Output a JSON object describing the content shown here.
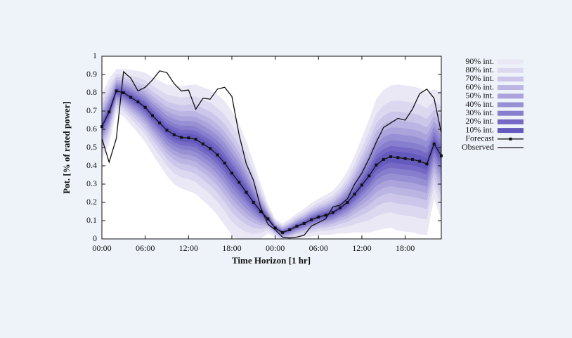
{
  "chart_data": {
    "type": "fan",
    "xlabel": "Time Horizon [1 hr]",
    "ylabel": "Pot. [% of rated power]",
    "categories": [
      "00:00",
      null,
      null,
      null,
      null,
      null,
      "06:00",
      null,
      null,
      null,
      null,
      null,
      "12:00",
      null,
      null,
      null,
      null,
      null,
      "18:00",
      null,
      null,
      null,
      null,
      null,
      "00:00",
      null,
      null,
      null,
      null,
      null,
      "06:00",
      null,
      null,
      null,
      null,
      null,
      "12:00",
      null,
      null,
      null,
      null,
      null,
      "18:00",
      null,
      null,
      null,
      null,
      null
    ],
    "ylim": [
      0,
      1
    ],
    "yticks": [
      0,
      0.1,
      0.2,
      0.3,
      0.4,
      0.5,
      0.6,
      0.7,
      0.8,
      0.9,
      1
    ],
    "series": [
      {
        "name": "Forecast",
        "color": "#111111",
        "marker": "square",
        "values": [
          0.615,
          0.695,
          0.81,
          0.8,
          0.775,
          0.75,
          0.72,
          0.675,
          0.635,
          0.595,
          0.57,
          0.555,
          0.553,
          0.545,
          0.52,
          0.495,
          0.46,
          0.415,
          0.36,
          0.31,
          0.255,
          0.2,
          0.15,
          0.11,
          0.06,
          0.035,
          0.05,
          0.07,
          0.085,
          0.105,
          0.12,
          0.13,
          0.145,
          0.17,
          0.2,
          0.245,
          0.295,
          0.345,
          0.405,
          0.435,
          0.45,
          0.445,
          0.44,
          0.435,
          0.425,
          0.41,
          0.52,
          0.455
        ]
      },
      {
        "name": "Observed",
        "color": "#111111",
        "values": [
          0.55,
          0.42,
          0.55,
          0.915,
          0.88,
          0.81,
          0.83,
          0.87,
          0.92,
          0.91,
          0.85,
          0.81,
          0.815,
          0.71,
          0.77,
          0.765,
          0.82,
          0.83,
          0.78,
          0.57,
          0.41,
          0.32,
          0.17,
          0.08,
          0.05,
          0.01,
          0.005,
          0.01,
          0.02,
          0.07,
          0.09,
          0.11,
          0.175,
          0.185,
          0.22,
          0.3,
          0.36,
          0.44,
          0.53,
          0.61,
          0.635,
          0.66,
          0.65,
          0.71,
          0.795,
          0.82,
          0.77,
          0.58
        ]
      }
    ],
    "intervals": [
      {
        "name": "90% int.",
        "color": "#ebe8f5",
        "values": [
          0.18,
          0.18,
          0.12,
          0.13,
          0.15,
          0.17,
          0.19,
          0.21,
          0.23,
          0.25,
          0.27,
          0.28,
          0.29,
          0.3,
          0.31,
          0.32,
          0.33,
          0.34,
          0.34,
          0.32,
          0.28,
          0.22,
          0.15,
          0.08,
          0.05,
          0.05,
          0.06,
          0.07,
          0.08,
          0.09,
          0.1,
          0.11,
          0.12,
          0.14,
          0.17,
          0.21,
          0.26,
          0.31,
          0.36,
          0.38,
          0.39,
          0.4,
          0.4,
          0.4,
          0.4,
          0.39,
          0.3,
          0.35
        ]
      },
      {
        "name": "80% int.",
        "color": "#dcd8f0",
        "values": [
          0.14,
          0.14,
          0.094,
          0.101,
          0.117,
          0.133,
          0.148,
          0.164,
          0.179,
          0.195,
          0.211,
          0.218,
          0.226,
          0.234,
          0.242,
          0.25,
          0.257,
          0.265,
          0.265,
          0.25,
          0.218,
          0.172,
          0.117,
          0.062,
          0.039,
          0.039,
          0.047,
          0.055,
          0.062,
          0.07,
          0.078,
          0.086,
          0.094,
          0.109,
          0.133,
          0.164,
          0.203,
          0.242,
          0.281,
          0.296,
          0.304,
          0.312,
          0.312,
          0.312,
          0.312,
          0.304,
          0.234,
          0.273
        ]
      },
      {
        "name": "70% int.",
        "color": "#ccc7ea",
        "values": [
          0.113,
          0.113,
          0.076,
          0.082,
          0.095,
          0.107,
          0.12,
          0.132,
          0.145,
          0.158,
          0.17,
          0.176,
          0.183,
          0.189,
          0.195,
          0.202,
          0.208,
          0.214,
          0.214,
          0.202,
          0.176,
          0.139,
          0.095,
          0.05,
          0.032,
          0.032,
          0.038,
          0.044,
          0.05,
          0.057,
          0.063,
          0.069,
          0.076,
          0.088,
          0.107,
          0.132,
          0.164,
          0.195,
          0.227,
          0.239,
          0.246,
          0.252,
          0.252,
          0.252,
          0.252,
          0.246,
          0.189,
          0.221
        ]
      },
      {
        "name": "60% int.",
        "color": "#bbb5e3",
        "values": [
          0.092,
          0.092,
          0.061,
          0.066,
          0.077,
          0.087,
          0.097,
          0.107,
          0.117,
          0.128,
          0.138,
          0.143,
          0.148,
          0.153,
          0.158,
          0.163,
          0.168,
          0.173,
          0.173,
          0.163,
          0.143,
          0.112,
          0.077,
          0.041,
          0.026,
          0.026,
          0.031,
          0.036,
          0.041,
          0.046,
          0.051,
          0.056,
          0.061,
          0.071,
          0.087,
          0.107,
          0.133,
          0.158,
          0.184,
          0.194,
          0.199,
          0.204,
          0.204,
          0.204,
          0.204,
          0.199,
          0.153,
          0.179
        ]
      },
      {
        "name": "50% int.",
        "color": "#aaa3dc",
        "values": [
          0.074,
          0.074,
          0.049,
          0.053,
          0.062,
          0.07,
          0.078,
          0.086,
          0.094,
          0.103,
          0.111,
          0.115,
          0.119,
          0.123,
          0.127,
          0.131,
          0.135,
          0.139,
          0.139,
          0.131,
          0.115,
          0.09,
          0.062,
          0.033,
          0.021,
          0.021,
          0.025,
          0.029,
          0.033,
          0.037,
          0.041,
          0.045,
          0.049,
          0.057,
          0.07,
          0.086,
          0.107,
          0.127,
          0.148,
          0.156,
          0.16,
          0.164,
          0.164,
          0.164,
          0.164,
          0.16,
          0.123,
          0.144
        ]
      },
      {
        "name": "40% int.",
        "color": "#9890d4",
        "values": [
          0.058,
          0.058,
          0.038,
          0.042,
          0.048,
          0.054,
          0.061,
          0.067,
          0.074,
          0.08,
          0.086,
          0.09,
          0.093,
          0.096,
          0.099,
          0.102,
          0.106,
          0.109,
          0.109,
          0.102,
          0.09,
          0.07,
          0.048,
          0.026,
          0.016,
          0.016,
          0.019,
          0.022,
          0.026,
          0.029,
          0.032,
          0.035,
          0.038,
          0.045,
          0.054,
          0.067,
          0.083,
          0.099,
          0.115,
          0.122,
          0.125,
          0.128,
          0.128,
          0.128,
          0.128,
          0.125,
          0.096,
          0.112
        ]
      },
      {
        "name": "30% int.",
        "color": "#877ecd",
        "values": [
          0.041,
          0.041,
          0.028,
          0.03,
          0.035,
          0.039,
          0.044,
          0.048,
          0.053,
          0.058,
          0.062,
          0.064,
          0.067,
          0.069,
          0.071,
          0.074,
          0.076,
          0.078,
          0.078,
          0.074,
          0.064,
          0.051,
          0.035,
          0.018,
          0.012,
          0.012,
          0.014,
          0.016,
          0.018,
          0.021,
          0.023,
          0.025,
          0.028,
          0.032,
          0.039,
          0.048,
          0.06,
          0.071,
          0.083,
          0.087,
          0.09,
          0.092,
          0.092,
          0.092,
          0.092,
          0.09,
          0.069,
          0.081
        ]
      },
      {
        "name": "20% int.",
        "color": "#7569c5",
        "values": [
          0.027,
          0.027,
          0.018,
          0.02,
          0.023,
          0.026,
          0.029,
          0.032,
          0.035,
          0.038,
          0.041,
          0.042,
          0.044,
          0.045,
          0.047,
          0.048,
          0.05,
          0.051,
          0.051,
          0.048,
          0.042,
          0.033,
          0.023,
          0.012,
          0.008,
          0.008,
          0.009,
          0.011,
          0.012,
          0.014,
          0.015,
          0.017,
          0.018,
          0.021,
          0.026,
          0.032,
          0.039,
          0.047,
          0.054,
          0.057,
          0.059,
          0.06,
          0.06,
          0.06,
          0.06,
          0.059,
          0.045,
          0.053
        ]
      },
      {
        "name": "10% int.",
        "color": "#6459bd",
        "values": [
          0.014,
          0.014,
          0.01,
          0.01,
          0.012,
          0.014,
          0.015,
          0.017,
          0.018,
          0.02,
          0.022,
          0.022,
          0.023,
          0.024,
          0.025,
          0.026,
          0.026,
          0.027,
          0.027,
          0.026,
          0.022,
          0.018,
          0.012,
          0.006,
          0.004,
          0.004,
          0.005,
          0.006,
          0.006,
          0.007,
          0.008,
          0.009,
          0.01,
          0.011,
          0.014,
          0.017,
          0.021,
          0.025,
          0.029,
          0.03,
          0.031,
          0.032,
          0.032,
          0.032,
          0.032,
          0.031,
          0.024,
          0.028
        ]
      }
    ]
  }
}
